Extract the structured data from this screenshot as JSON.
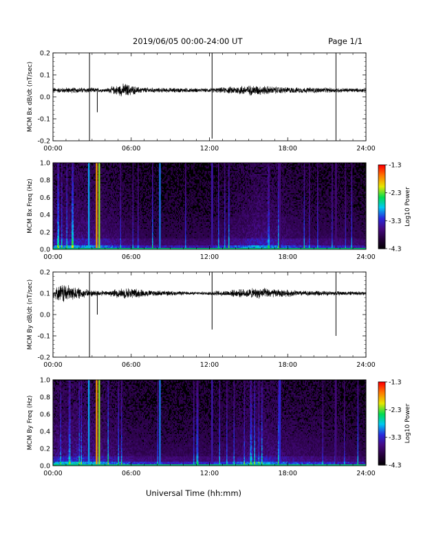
{
  "header": {
    "date_range": "2019/06/05  00:00-24:00 UT",
    "page": "Page 1/1"
  },
  "footer": {
    "xlabel": "Universal Time (hh:mm)"
  },
  "chart_data": [
    {
      "type": "line",
      "title": "",
      "ylabel": "MCM Bx dB/dt (nT/sec)",
      "xlim": [
        0,
        24
      ],
      "ylim": [
        -0.2,
        0.2
      ],
      "x_ticks": [
        "00:00",
        "06:00",
        "12:00",
        "18:00",
        "24:00"
      ],
      "y_ticks": [
        "-0.2",
        "-0.1",
        "0.0",
        "0.1",
        "0.2"
      ],
      "baseline": 0.03,
      "noise_envelope": [
        [
          0.0,
          0.01
        ],
        [
          1.0,
          0.012
        ],
        [
          2.5,
          0.012
        ],
        [
          4.0,
          0.008
        ],
        [
          5.0,
          0.022
        ],
        [
          5.5,
          0.03
        ],
        [
          6.5,
          0.014
        ],
        [
          8.0,
          0.01
        ],
        [
          10.0,
          0.01
        ],
        [
          11.5,
          0.008
        ],
        [
          13.0,
          0.012
        ],
        [
          14.5,
          0.02
        ],
        [
          15.5,
          0.022
        ],
        [
          17.0,
          0.016
        ],
        [
          18.5,
          0.012
        ],
        [
          20.0,
          0.012
        ],
        [
          22.0,
          0.01
        ],
        [
          24.0,
          0.008
        ]
      ],
      "spikes": [
        {
          "x": 2.8,
          "high": 0.2,
          "low": -0.2
        },
        {
          "x": 3.4,
          "high": 0.03,
          "low": -0.07
        },
        {
          "x": 12.2,
          "high": 0.2,
          "low": -0.19
        },
        {
          "x": 21.7,
          "high": 0.2,
          "low": -0.2
        }
      ]
    },
    {
      "type": "heatmap",
      "title": "",
      "ylabel": "MCM Bx Freq (Hz)",
      "xlim": [
        0,
        24
      ],
      "ylim": [
        0,
        1.0
      ],
      "x_ticks": [
        "00:00",
        "06:00",
        "12:00",
        "18:00",
        "24:00"
      ],
      "y_ticks": [
        "0.0",
        "0.2",
        "0.4",
        "0.6",
        "0.8",
        "1.0"
      ],
      "colorbar": {
        "label": "Log10 Power",
        "range": [
          -4.3,
          -1.3
        ],
        "ticks": [
          "-1.3",
          "-2.3",
          "-3.3",
          "-4.3"
        ]
      },
      "activity_profile": [
        [
          0,
          0.55
        ],
        [
          2,
          0.6
        ],
        [
          4,
          0.5
        ],
        [
          6,
          0.35
        ],
        [
          8,
          0.3
        ],
        [
          10,
          0.3
        ],
        [
          12,
          0.3
        ],
        [
          14,
          0.45
        ],
        [
          16,
          0.6
        ],
        [
          18,
          0.45
        ],
        [
          20,
          0.35
        ],
        [
          22,
          0.35
        ],
        [
          24,
          0.3
        ]
      ],
      "vertical_bands": [
        {
          "x": 2.75,
          "value": -2.9
        },
        {
          "x": 3.35,
          "value": -1.8
        },
        {
          "x": 3.55,
          "value": -2.2
        },
        {
          "x": 8.2,
          "value": -3.0
        },
        {
          "x": 12.2,
          "value": -3.4
        },
        {
          "x": 17.4,
          "value": -3.6
        },
        {
          "x": 21.7,
          "value": -3.6
        }
      ]
    },
    {
      "type": "line",
      "title": "",
      "ylabel": "MCM By dB/dt (nT/sec)",
      "xlim": [
        0,
        24
      ],
      "ylim": [
        -0.2,
        0.2
      ],
      "x_ticks": [
        "00:00",
        "06:00",
        "12:00",
        "18:00",
        "24:00"
      ],
      "y_ticks": [
        "-0.2",
        "-0.1",
        "0.0",
        "0.1",
        "0.2"
      ],
      "baseline": 0.1,
      "noise_envelope": [
        [
          0.0,
          0.018
        ],
        [
          0.8,
          0.045
        ],
        [
          1.5,
          0.03
        ],
        [
          2.5,
          0.018
        ],
        [
          4.0,
          0.01
        ],
        [
          5.0,
          0.02
        ],
        [
          6.0,
          0.025
        ],
        [
          7.0,
          0.015
        ],
        [
          9.0,
          0.01
        ],
        [
          11.0,
          0.006
        ],
        [
          13.0,
          0.012
        ],
        [
          14.5,
          0.018
        ],
        [
          16.0,
          0.024
        ],
        [
          17.0,
          0.018
        ],
        [
          19.0,
          0.012
        ],
        [
          21.0,
          0.01
        ],
        [
          24.0,
          0.008
        ]
      ],
      "spikes": [
        {
          "x": 2.8,
          "high": 0.2,
          "low": -0.2
        },
        {
          "x": 3.4,
          "high": 0.1,
          "low": 0.0
        },
        {
          "x": 12.2,
          "high": 0.2,
          "low": -0.07
        },
        {
          "x": 21.7,
          "high": 0.2,
          "low": -0.1
        }
      ]
    },
    {
      "type": "heatmap",
      "title": "",
      "ylabel": "MCM By Freq (Hz)",
      "xlim": [
        0,
        24
      ],
      "ylim": [
        0,
        1.0
      ],
      "x_ticks": [
        "00:00",
        "06:00",
        "12:00",
        "18:00",
        "24:00"
      ],
      "y_ticks": [
        "0.0",
        "0.2",
        "0.4",
        "0.6",
        "0.8",
        "1.0"
      ],
      "colorbar": {
        "label": "Log10 Power",
        "range": [
          -4.3,
          -1.3
        ],
        "ticks": [
          "-1.3",
          "-2.3",
          "-3.3",
          "-4.3"
        ]
      },
      "activity_profile": [
        [
          0,
          0.6
        ],
        [
          2,
          0.65
        ],
        [
          4,
          0.55
        ],
        [
          6,
          0.4
        ],
        [
          8,
          0.35
        ],
        [
          10,
          0.35
        ],
        [
          12,
          0.35
        ],
        [
          14,
          0.45
        ],
        [
          16,
          0.6
        ],
        [
          18,
          0.45
        ],
        [
          20,
          0.4
        ],
        [
          22,
          0.35
        ],
        [
          24,
          0.3
        ]
      ],
      "vertical_bands": [
        {
          "x": 2.75,
          "value": -2.9
        },
        {
          "x": 3.35,
          "value": -1.8
        },
        {
          "x": 3.55,
          "value": -2.2
        },
        {
          "x": 8.2,
          "value": -3.0
        },
        {
          "x": 12.2,
          "value": -3.4
        },
        {
          "x": 17.4,
          "value": -3.2
        },
        {
          "x": 21.7,
          "value": -3.6
        }
      ]
    }
  ]
}
